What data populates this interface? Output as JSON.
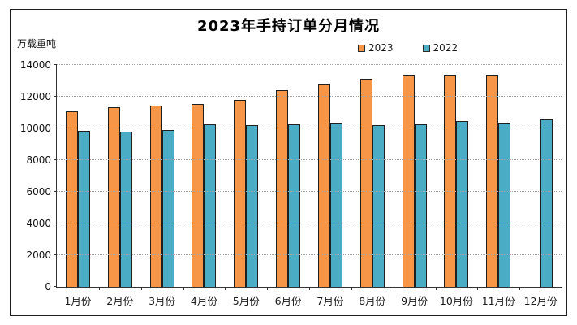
{
  "chart_data": {
    "type": "bar",
    "title": "2023年手持订单分月情况",
    "unit_label": "万载重吨",
    "categories": [
      "1月份",
      "2月份",
      "3月份",
      "4月份",
      "5月份",
      "6月份",
      "7月份",
      "8月份",
      "9月份",
      "10月份",
      "11月份",
      "12月份"
    ],
    "series": [
      {
        "name": "2023",
        "color": "#F79646",
        "values": [
          11100,
          11350,
          11450,
          11550,
          11800,
          12400,
          12800,
          13150,
          13400,
          13400,
          13400,
          null
        ]
      },
      {
        "name": "2022",
        "color": "#4BACC6",
        "values": [
          9850,
          9800,
          9900,
          10250,
          10200,
          10250,
          10350,
          10200,
          10250,
          10450,
          10350,
          10550
        ]
      }
    ],
    "ylim": [
      0,
      14000
    ],
    "yticks": [
      0,
      2000,
      4000,
      6000,
      8000,
      10000,
      12000,
      14000
    ],
    "grid": "horizontal-dotted",
    "legend_position": "top-right",
    "bar_border_color": "#1f1f1f",
    "axis_color": "#333333",
    "gridline_color": "#a6a6a6"
  }
}
